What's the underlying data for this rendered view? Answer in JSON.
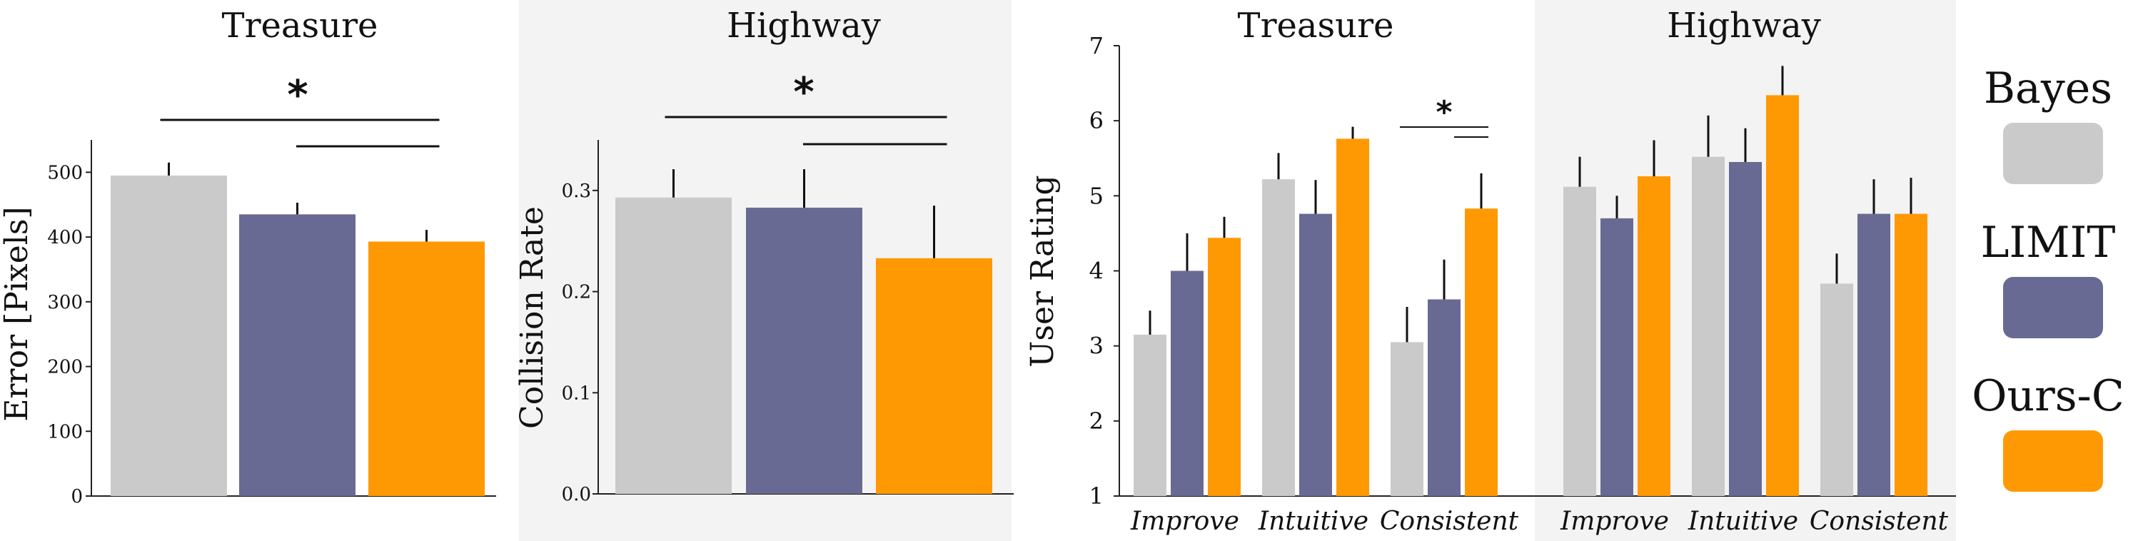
{
  "colors": {
    "Bayes": "#cacaca",
    "LIMIT": "#696a93",
    "Ours-C": "#fe9904",
    "panel_bg": "#f3f3f3"
  },
  "legend": {
    "entries": [
      "Bayes",
      "LIMIT",
      "Ours-C"
    ]
  },
  "chart_data": [
    {
      "type": "bar",
      "title": "Treasure",
      "ylabel": "Error [Pixels]",
      "ylim": [
        0,
        550
      ],
      "yticks": [
        0,
        100,
        200,
        300,
        400,
        500
      ],
      "categories": [
        "Bayes",
        "LIMIT",
        "Ours-C"
      ],
      "values": [
        495,
        435,
        393
      ],
      "errors": [
        20,
        18,
        18
      ],
      "background": "none",
      "significance": [
        {
          "from": "Bayes",
          "to": "Ours-C",
          "label": "*"
        },
        {
          "from": "LIMIT",
          "to": "Ours-C",
          "label": ""
        }
      ]
    },
    {
      "type": "bar",
      "title": "Highway",
      "ylabel": "Collision Rate",
      "ylim": [
        0,
        0.35
      ],
      "yticks": [
        "0.0",
        "0.1",
        "0.2",
        "0.3"
      ],
      "categories": [
        "Bayes",
        "LIMIT",
        "Ours-C"
      ],
      "values": [
        0.293,
        0.283,
        0.233
      ],
      "errors": [
        0.028,
        0.038,
        0.052
      ],
      "background": "gray",
      "significance": [
        {
          "from": "Bayes",
          "to": "Ours-C",
          "label": "*"
        },
        {
          "from": "LIMIT",
          "to": "Ours-C",
          "label": ""
        }
      ]
    },
    {
      "type": "bar",
      "ylabel": "User Rating",
      "ylim": [
        1,
        7
      ],
      "yticks": [
        1,
        2,
        3,
        4,
        5,
        6,
        7
      ],
      "panels": [
        {
          "title": "Treasure",
          "background": "none",
          "categories": [
            "Improve",
            "Intuitive",
            "Consistent"
          ],
          "series": [
            {
              "name": "Bayes",
              "values": [
                3.15,
                5.22,
                3.05
              ],
              "errors": [
                0.32,
                0.35,
                0.47
              ]
            },
            {
              "name": "LIMIT",
              "values": [
                4.0,
                4.76,
                3.62
              ],
              "errors": [
                0.5,
                0.45,
                0.53
              ]
            },
            {
              "name": "Ours-C",
              "values": [
                4.44,
                5.76,
                4.83
              ],
              "errors": [
                0.28,
                0.16,
                0.47
              ]
            }
          ],
          "significance": [
            {
              "category": "Consistent",
              "from": "Bayes",
              "to": "Ours-C",
              "label": "*"
            },
            {
              "category": "Consistent",
              "from": "LIMIT",
              "to": "Ours-C",
              "label": ""
            }
          ]
        },
        {
          "title": "Highway",
          "background": "gray",
          "categories": [
            "Improve",
            "Intuitive",
            "Consistent"
          ],
          "series": [
            {
              "name": "Bayes",
              "values": [
                5.12,
                5.52,
                3.83
              ],
              "errors": [
                0.4,
                0.55,
                0.4
              ]
            },
            {
              "name": "LIMIT",
              "values": [
                4.7,
                5.45,
                4.76
              ],
              "errors": [
                0.3,
                0.45,
                0.46
              ]
            },
            {
              "name": "Ours-C",
              "values": [
                5.26,
                6.34,
                4.76
              ],
              "errors": [
                0.48,
                0.39,
                0.48
              ]
            }
          ],
          "significance": []
        }
      ]
    }
  ]
}
